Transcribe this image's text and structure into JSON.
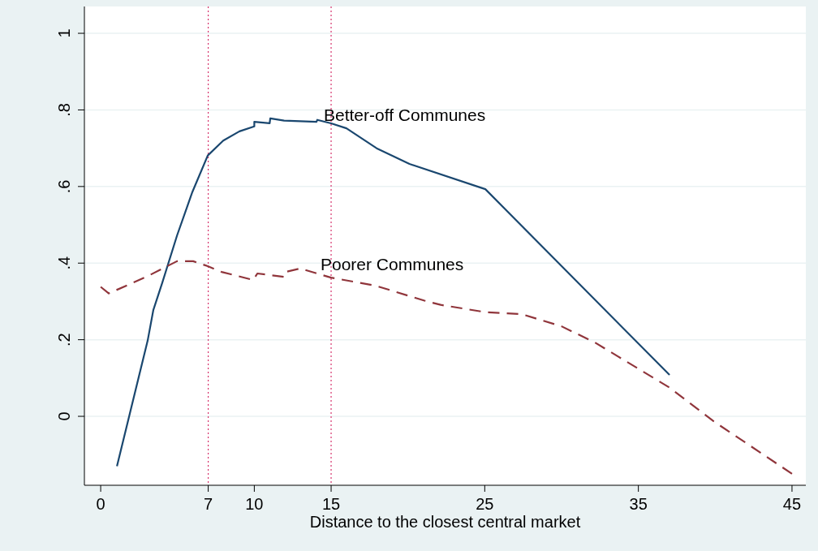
{
  "chart_data": {
    "type": "line",
    "xlabel": "Distance to the closest central market",
    "xlim": [
      -1.06,
      45.9
    ],
    "xticks": [
      0,
      7,
      10,
      15,
      25,
      35,
      45
    ],
    "ylim": [
      -0.18,
      1.07
    ],
    "yticks": [
      {
        "value": 0,
        "label": "0"
      },
      {
        "value": 0.2,
        "label": ".2"
      },
      {
        "value": 0.4,
        "label": ".4"
      },
      {
        "value": 0.6,
        "label": ".6"
      },
      {
        "value": 0.8,
        "label": ".8"
      },
      {
        "value": 1,
        "label": "1"
      }
    ],
    "grid": "y",
    "marker": "none",
    "series": [
      {
        "color": "#1a476f",
        "line_style": "solid",
        "x": [
          1.06,
          3.06,
          3.43,
          4.01,
          4.97,
          5.97,
          6.97,
          7.98,
          9.03,
          10.0,
          10.0,
          11.0,
          11.04,
          11.94,
          14.05,
          14.1,
          15.0,
          16.0,
          17.96,
          20.1,
          25.04,
          37.03
        ],
        "values": [
          -0.13,
          0.198,
          0.278,
          0.349,
          0.472,
          0.586,
          0.681,
          0.72,
          0.744,
          0.757,
          0.769,
          0.765,
          0.778,
          0.772,
          0.769,
          0.774,
          0.765,
          0.752,
          0.7,
          0.659,
          0.593,
          0.108
        ]
      },
      {
        "color": "#90353b",
        "line_style": "dashed",
        "x": [
          0,
          0.53,
          2.96,
          4.97,
          6.02,
          6.97,
          7.87,
          9.93,
          10.2,
          11.94,
          12.04,
          13.0,
          15.0,
          17.9,
          21.08,
          22.13,
          25.04,
          27.4,
          30.0,
          32.2,
          37.03,
          39.9,
          45.0
        ],
        "values": [
          0.338,
          0.321,
          0.364,
          0.405,
          0.405,
          0.392,
          0.377,
          0.356,
          0.373,
          0.364,
          0.377,
          0.386,
          0.362,
          0.341,
          0.302,
          0.291,
          0.272,
          0.267,
          0.235,
          0.192,
          0.075,
          -0.013,
          -0.15
        ]
      }
    ],
    "ref_lines": [
      {
        "axis": "x",
        "value": 7,
        "color": "#d6336c",
        "line_style": "dotted"
      },
      {
        "axis": "x",
        "value": 15,
        "color": "#d6336c",
        "line_style": "dotted"
      }
    ],
    "annotations": [
      "Better-off Communes",
      "Poorer Communes"
    ]
  }
}
